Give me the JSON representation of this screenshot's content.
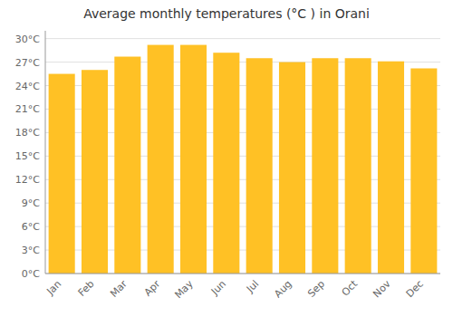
{
  "chart_data": {
    "type": "bar",
    "title": "Average monthly temperatures (°C ) in Orani",
    "categories": [
      "Jan",
      "Feb",
      "Mar",
      "Apr",
      "May",
      "Jun",
      "Jul",
      "Aug",
      "Sep",
      "Oct",
      "Nov",
      "Dec"
    ],
    "values": [
      25.5,
      26.0,
      27.7,
      29.2,
      29.2,
      28.2,
      27.5,
      27.0,
      27.5,
      27.5,
      27.1,
      26.2
    ],
    "color": "#FFC125",
    "ylim": [
      0,
      31
    ],
    "yticks": [
      {
        "value": 0,
        "label": "0°C"
      },
      {
        "value": 3,
        "label": "3°C"
      },
      {
        "value": 6,
        "label": "6°C"
      },
      {
        "value": 9,
        "label": "9°C"
      },
      {
        "value": 12,
        "label": "12°C"
      },
      {
        "value": 15,
        "label": "15°C"
      },
      {
        "value": 18,
        "label": "18°C"
      },
      {
        "value": 21,
        "label": "21°C"
      },
      {
        "value": 24,
        "label": "24°C"
      },
      {
        "value": 27,
        "label": "27°C"
      },
      {
        "value": 30,
        "label": "30°C"
      }
    ],
    "grid": true
  }
}
